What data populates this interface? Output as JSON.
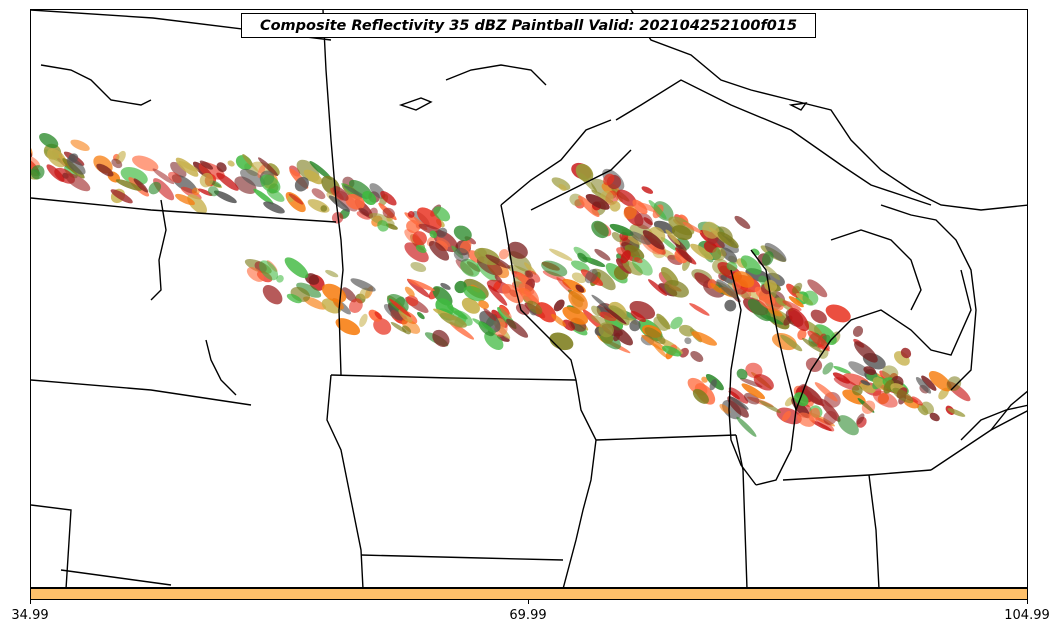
{
  "title": "Composite Reflectivity 35 dBZ Paintball Valid: 202104252100f015",
  "colorbar": {
    "color": "#fec06a",
    "ticks": [
      "34.99",
      "69.99",
      "104.99"
    ]
  },
  "map": {
    "boundary_color": "#000000",
    "paint_colors": [
      "#e8301f",
      "#f77c0e",
      "#c81414",
      "#7d7d1d",
      "#3fb93f",
      "#7a1f1f",
      "#9a9a3a",
      "#ff6a3d",
      "#555555",
      "#2e8b2e",
      "#a12c2c",
      "#c6b04a"
    ]
  }
}
